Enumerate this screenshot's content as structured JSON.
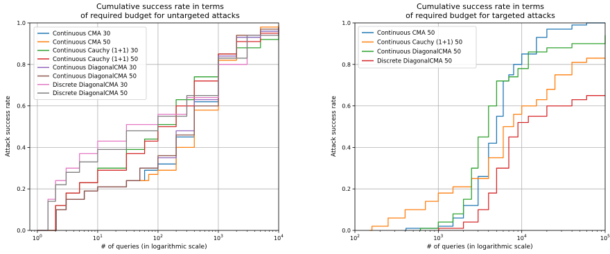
{
  "chart_data": [
    {
      "type": "line",
      "step": true,
      "title": [
        "Cumulative success rate in terms",
        "of required budget for untargeted attacks"
      ],
      "xlabel": "# of queries (in logarithmic scale)",
      "ylabel": "Attack success rate",
      "xscale": "log",
      "xlim": [
        0.75,
        10000
      ],
      "ylim": [
        0,
        1
      ],
      "xticks": [
        1,
        10,
        100,
        1000,
        10000
      ],
      "xtick_labels": [
        "10^0",
        "10^1",
        "10^2",
        "10^3",
        "10^4"
      ],
      "yticks": [
        0,
        0.2,
        0.4,
        0.6,
        0.8,
        1.0
      ],
      "ytick_labels": [
        "0.0",
        "0.2",
        "0.4",
        "0.6",
        "0.8",
        "1.0"
      ],
      "grid": true,
      "legend_position": "top-left",
      "series": [
        {
          "name": "Continuous CMA 30",
          "color": "#1f77b4",
          "points": [
            [
              2,
              0
            ],
            [
              2.05,
              0.1
            ],
            [
              3,
              0.15
            ],
            [
              6,
              0.19
            ],
            [
              10,
              0.21
            ],
            [
              30,
              0.24
            ],
            [
              60,
              0.29
            ],
            [
              100,
              0.32
            ],
            [
              200,
              0.45
            ],
            [
              400,
              0.62
            ],
            [
              1000,
              0.85
            ],
            [
              2000,
              0.93
            ],
            [
              5000,
              0.96
            ],
            [
              10000,
              0.97
            ]
          ]
        },
        {
          "name": "Continuous CMA 50",
          "color": "#ff7f0e",
          "points": [
            [
              2,
              0
            ],
            [
              2.05,
              0.1
            ],
            [
              3,
              0.15
            ],
            [
              6,
              0.19
            ],
            [
              10,
              0.21
            ],
            [
              30,
              0.24
            ],
            [
              70,
              0.27
            ],
            [
              100,
              0.29
            ],
            [
              200,
              0.4
            ],
            [
              400,
              0.58
            ],
            [
              1000,
              0.82
            ],
            [
              2000,
              0.94
            ],
            [
              5000,
              0.98
            ],
            [
              10000,
              0.99
            ]
          ]
        },
        {
          "name": "Continuous Cauchy (1+1) 30",
          "color": "#2ca02c",
          "points": [
            [
              1,
              0
            ],
            [
              2,
              0.12
            ],
            [
              3,
              0.18
            ],
            [
              5,
              0.23
            ],
            [
              10,
              0.3
            ],
            [
              30,
              0.39
            ],
            [
              60,
              0.44
            ],
            [
              100,
              0.51
            ],
            [
              200,
              0.63
            ],
            [
              400,
              0.74
            ],
            [
              1000,
              0.85
            ],
            [
              2000,
              0.88
            ],
            [
              5000,
              0.92
            ],
            [
              10000,
              0.95
            ]
          ]
        },
        {
          "name": "Continuous Cauchy (1+1) 50",
          "color": "#d62728",
          "points": [
            [
              1,
              0
            ],
            [
              2,
              0.12
            ],
            [
              3,
              0.18
            ],
            [
              5,
              0.23
            ],
            [
              10,
              0.29
            ],
            [
              30,
              0.37
            ],
            [
              60,
              0.43
            ],
            [
              100,
              0.5
            ],
            [
              200,
              0.6
            ],
            [
              400,
              0.72
            ],
            [
              1000,
              0.85
            ],
            [
              2000,
              0.91
            ],
            [
              5000,
              0.95
            ],
            [
              10000,
              0.98
            ]
          ]
        },
        {
          "name": "Continuous DiagonalCMA 30",
          "color": "#9467bd",
          "points": [
            [
              2,
              0
            ],
            [
              2.05,
              0.1
            ],
            [
              3,
              0.15
            ],
            [
              6,
              0.19
            ],
            [
              10,
              0.21
            ],
            [
              30,
              0.24
            ],
            [
              50,
              0.3
            ],
            [
              100,
              0.35
            ],
            [
              200,
              0.48
            ],
            [
              400,
              0.63
            ],
            [
              1000,
              0.84
            ],
            [
              2000,
              0.93
            ],
            [
              5000,
              0.96
            ],
            [
              10000,
              0.97
            ]
          ]
        },
        {
          "name": "Continuous  DiagonalCMA 50",
          "color": "#8c564b",
          "points": [
            [
              2,
              0
            ],
            [
              2.05,
              0.1
            ],
            [
              3,
              0.15
            ],
            [
              6,
              0.19
            ],
            [
              10,
              0.21
            ],
            [
              30,
              0.24
            ],
            [
              50,
              0.3
            ],
            [
              100,
              0.36
            ],
            [
              200,
              0.46
            ],
            [
              400,
              0.6
            ],
            [
              1000,
              0.83
            ],
            [
              2000,
              0.94
            ],
            [
              5000,
              0.97
            ],
            [
              10000,
              0.98
            ]
          ]
        },
        {
          "name": "Discrete DiagonalCMA 30",
          "color": "#e377c2",
          "points": [
            [
              1,
              0
            ],
            [
              1.5,
              0.15
            ],
            [
              2,
              0.24
            ],
            [
              3,
              0.3
            ],
            [
              5,
              0.37
            ],
            [
              10,
              0.43
            ],
            [
              30,
              0.51
            ],
            [
              100,
              0.56
            ],
            [
              300,
              0.64
            ],
            [
              1000,
              0.8
            ],
            [
              3000,
              0.94
            ],
            [
              10000,
              0.97
            ]
          ]
        },
        {
          "name": "Discrete DiagonalCMA 50",
          "color": "#7f7f7f",
          "points": [
            [
              1,
              0
            ],
            [
              1.5,
              0.14
            ],
            [
              2,
              0.22
            ],
            [
              3,
              0.28
            ],
            [
              5,
              0.33
            ],
            [
              10,
              0.39
            ],
            [
              30,
              0.48
            ],
            [
              100,
              0.55
            ],
            [
              300,
              0.65
            ],
            [
              1000,
              0.83
            ],
            [
              3000,
              0.94
            ],
            [
              10000,
              0.97
            ]
          ]
        }
      ]
    },
    {
      "type": "line",
      "step": true,
      "title": [
        "Cumulative success rate in terms",
        "of required budget for targeted attacks"
      ],
      "xlabel": "# of queries (in logarithmic scale)",
      "ylabel": "Attack success rate",
      "xscale": "log",
      "xlim": [
        100,
        100000
      ],
      "ylim": [
        0,
        1
      ],
      "xticks": [
        100,
        1000,
        10000,
        100000
      ],
      "xtick_labels": [
        "10^2",
        "10^3",
        "10^4",
        "10^5"
      ],
      "yticks": [
        0,
        0.2,
        0.4,
        0.6,
        0.8,
        1.0
      ],
      "ytick_labels": [
        "0.0",
        "0.2",
        "0.4",
        "0.6",
        "0.8",
        "1.0"
      ],
      "grid": true,
      "legend_position": "top-left",
      "series": [
        {
          "name": "Continuous CMA 50",
          "color": "#1f77b4",
          "points": [
            [
              400,
              0
            ],
            [
              410,
              0.01
            ],
            [
              1000,
              0.02
            ],
            [
              1500,
              0.06
            ],
            [
              2000,
              0.12
            ],
            [
              3000,
              0.26
            ],
            [
              4000,
              0.42
            ],
            [
              5000,
              0.55
            ],
            [
              6000,
              0.72
            ],
            [
              7000,
              0.75
            ],
            [
              8000,
              0.8
            ],
            [
              10000,
              0.85
            ],
            [
              15000,
              0.93
            ],
            [
              20000,
              0.97
            ],
            [
              40000,
              0.99
            ],
            [
              60000,
              1.0
            ],
            [
              100000,
              1.0
            ]
          ]
        },
        {
          "name": "Continuous Cauchy (1+1) 50",
          "color": "#ff7f0e",
          "points": [
            [
              150,
              0
            ],
            [
              160,
              0.02
            ],
            [
              250,
              0.06
            ],
            [
              400,
              0.1
            ],
            [
              700,
              0.14
            ],
            [
              1000,
              0.18
            ],
            [
              1500,
              0.21
            ],
            [
              2500,
              0.25
            ],
            [
              4000,
              0.35
            ],
            [
              6000,
              0.5
            ],
            [
              8000,
              0.56
            ],
            [
              10000,
              0.6
            ],
            [
              15000,
              0.63
            ],
            [
              20000,
              0.68
            ],
            [
              25000,
              0.75
            ],
            [
              40000,
              0.81
            ],
            [
              60000,
              0.83
            ],
            [
              100000,
              0.83
            ]
          ]
        },
        {
          "name": "Continuous  DiagonalCMA 50",
          "color": "#2ca02c",
          "points": [
            [
              600,
              0
            ],
            [
              610,
              0.01
            ],
            [
              1000,
              0.04
            ],
            [
              1500,
              0.08
            ],
            [
              2000,
              0.15
            ],
            [
              2500,
              0.3
            ],
            [
              3000,
              0.45
            ],
            [
              4000,
              0.6
            ],
            [
              5000,
              0.72
            ],
            [
              7000,
              0.74
            ],
            [
              9000,
              0.78
            ],
            [
              12000,
              0.86
            ],
            [
              20000,
              0.88
            ],
            [
              40000,
              0.9
            ],
            [
              100000,
              0.94
            ]
          ]
        },
        {
          "name": "Discrete DiagonalCMA 50",
          "color": "#d62728",
          "points": [
            [
              1000,
              0
            ],
            [
              1010,
              0.01
            ],
            [
              2000,
              0.04
            ],
            [
              3000,
              0.1
            ],
            [
              4000,
              0.18
            ],
            [
              5000,
              0.3
            ],
            [
              7000,
              0.45
            ],
            [
              9000,
              0.52
            ],
            [
              12000,
              0.55
            ],
            [
              20000,
              0.6
            ],
            [
              40000,
              0.63
            ],
            [
              60000,
              0.65
            ],
            [
              100000,
              0.65
            ]
          ]
        }
      ]
    }
  ]
}
